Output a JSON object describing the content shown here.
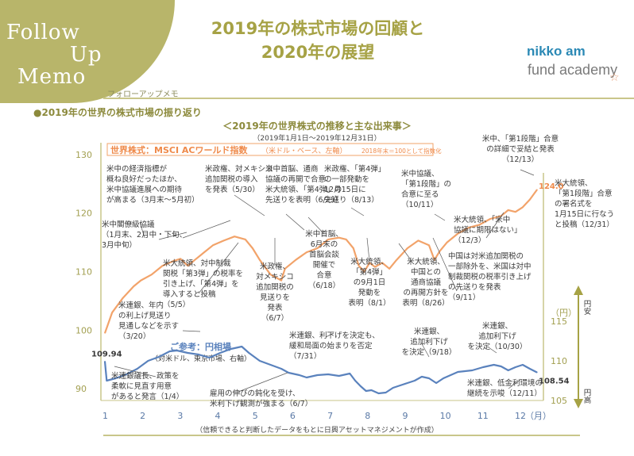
{
  "header": {
    "corner_line1": "Follow",
    "corner_line2": "Up",
    "corner_line3": "Memo",
    "corner_sub": "フォローアップメモ",
    "title_line1": "2019年の株式市場の回顧と",
    "title_line2": "2020年の展望",
    "logo_line1": "nikko am",
    "logo_line2": "fund academy",
    "logo_star": "☆"
  },
  "section_title": "●2019年の世界の株式市場の振り返り",
  "chart_title": "＜2019年の世界株式の推移と主な出来事＞",
  "period": "（2019年1月1日～2019年12月31日）",
  "footer": "（信頼できると判断したデータをもとに日興アセットマネジメントが作成）",
  "colors": {
    "olive": "#a6a245",
    "equity": "#f2a36a",
    "yen": "#5a82bd",
    "annotation": "#3a3a3a"
  },
  "chart_data": {
    "type": "line",
    "x": [
      "1",
      "2",
      "3",
      "4",
      "5",
      "6",
      "7",
      "8",
      "9",
      "10",
      "11",
      "12"
    ],
    "x_unit": "（月）",
    "left_axis": {
      "ticks": [
        "90",
        "100",
        "110",
        "120",
        "130"
      ],
      "range": [
        88,
        132
      ]
    },
    "right_axis": {
      "ticks": [
        "105",
        "110",
        "115"
      ],
      "unit": "（円）",
      "label_top": "円安",
      "label_bottom": "円高",
      "range": [
        104.5,
        118.5
      ]
    },
    "series": [
      {
        "name": "世界株式：MSCI ACワールド指数",
        "name_suffix": "（米ドル・ベース、左軸）",
        "note": "2018年末＝100として指数化",
        "axis": "left",
        "start_label": "",
        "end_label": "124.0",
        "points": [
          [
            0,
            99.5
          ],
          [
            0.2,
            103.0
          ],
          [
            0.5,
            105.5
          ],
          [
            0.8,
            107.5
          ],
          [
            1.0,
            108.5
          ],
          [
            1.3,
            109.5
          ],
          [
            1.6,
            111.0
          ],
          [
            1.9,
            111.8
          ],
          [
            2.1,
            112.2
          ],
          [
            2.3,
            111.0
          ],
          [
            2.5,
            112.0
          ],
          [
            2.8,
            113.5
          ],
          [
            3.0,
            114.5
          ],
          [
            3.3,
            115.3
          ],
          [
            3.6,
            116.0
          ],
          [
            3.9,
            115.5
          ],
          [
            4.1,
            114.0
          ],
          [
            4.3,
            112.0
          ],
          [
            4.6,
            109.5
          ],
          [
            4.9,
            108.5
          ],
          [
            5.0,
            110.5
          ],
          [
            5.3,
            112.0
          ],
          [
            5.6,
            113.3
          ],
          [
            5.9,
            114.0
          ],
          [
            6.2,
            115.5
          ],
          [
            6.5,
            115.8
          ],
          [
            6.7,
            115.5
          ],
          [
            6.9,
            114.0
          ],
          [
            7.05,
            111.0
          ],
          [
            7.2,
            110.0
          ],
          [
            7.35,
            111.5
          ],
          [
            7.5,
            110.8
          ],
          [
            7.7,
            111.5
          ],
          [
            7.9,
            110.5
          ],
          [
            8.1,
            112.0
          ],
          [
            8.4,
            114.0
          ],
          [
            8.7,
            115.3
          ],
          [
            9.0,
            114.5
          ],
          [
            9.15,
            112.0
          ],
          [
            9.3,
            113.5
          ],
          [
            9.5,
            115.0
          ],
          [
            9.8,
            116.5
          ],
          [
            10.1,
            117.5
          ],
          [
            10.4,
            118.0
          ],
          [
            10.7,
            119.0
          ],
          [
            11.0,
            119.5
          ],
          [
            11.2,
            120.5
          ],
          [
            11.4,
            120.2
          ],
          [
            11.6,
            121.0
          ],
          [
            11.8,
            122.3
          ],
          [
            12.0,
            124.0
          ]
        ]
      },
      {
        "name": "ご参考：円相場",
        "name_suffix": "（対米ドル、東京市場、右軸）",
        "axis": "right",
        "start_label": "109.94",
        "end_label": "108.54",
        "points": [
          [
            0,
            109.94
          ],
          [
            0.05,
            107.5
          ],
          [
            0.3,
            107.8
          ],
          [
            0.6,
            108.3
          ],
          [
            0.9,
            109.0
          ],
          [
            1.2,
            110.0
          ],
          [
            1.5,
            110.5
          ],
          [
            1.8,
            111.2
          ],
          [
            2.0,
            111.3
          ],
          [
            2.3,
            111.0
          ],
          [
            2.6,
            110.8
          ],
          [
            2.9,
            110.4
          ],
          [
            3.2,
            111.0
          ],
          [
            3.5,
            111.5
          ],
          [
            3.8,
            111.8
          ],
          [
            4.0,
            111.0
          ],
          [
            4.3,
            110.0
          ],
          [
            4.6,
            109.5
          ],
          [
            4.9,
            109.0
          ],
          [
            5.1,
            108.5
          ],
          [
            5.4,
            108.2
          ],
          [
            5.6,
            107.9
          ],
          [
            5.9,
            108.2
          ],
          [
            6.2,
            108.3
          ],
          [
            6.5,
            108.1
          ],
          [
            6.8,
            108.4
          ],
          [
            6.95,
            107.5
          ],
          [
            7.1,
            106.8
          ],
          [
            7.25,
            106.2
          ],
          [
            7.4,
            106.3
          ],
          [
            7.6,
            105.9
          ],
          [
            7.8,
            106.0
          ],
          [
            8.0,
            106.6
          ],
          [
            8.2,
            106.9
          ],
          [
            8.4,
            107.2
          ],
          [
            8.6,
            107.5
          ],
          [
            8.8,
            108.0
          ],
          [
            9.0,
            107.8
          ],
          [
            9.2,
            107.2
          ],
          [
            9.4,
            107.8
          ],
          [
            9.6,
            108.2
          ],
          [
            9.8,
            108.6
          ],
          [
            10.0,
            108.7
          ],
          [
            10.2,
            108.8
          ],
          [
            10.5,
            109.2
          ],
          [
            10.8,
            109.5
          ],
          [
            11.0,
            109.3
          ],
          [
            11.2,
            108.8
          ],
          [
            11.4,
            109.2
          ],
          [
            11.6,
            109.5
          ],
          [
            11.8,
            109.0
          ],
          [
            12.0,
            108.54
          ]
        ]
      }
    ]
  },
  "annotations": [
    {
      "lines": [
        "米中の経済指標が",
        "概ね良好だったほか、",
        "米中協議進展への期待",
        "が高まる（3月末～5月初）"
      ]
    },
    {
      "lines": [
        "米中閣僚級協議",
        "（1月末、2月中・下旬、",
        "3月中旬）"
      ]
    },
    {
      "lines": [
        "米政権、対メキシコ",
        "追加関税の導入",
        "を発表（5/30）"
      ]
    },
    {
      "lines": [
        "米中首脳、通商",
        "協議の再開で合意、",
        "米大統領、「第4弾」の",
        "先送りを表明（6/29）"
      ]
    },
    {
      "lines": [
        "米政権、「第4弾」",
        "の一部発動を",
        "12月15日に",
        "先送り（8/13）"
      ]
    },
    {
      "lines": [
        "米中協議、",
        "「第1段階」の",
        "合意に至る",
        "（10/11）"
      ]
    },
    {
      "lines": [
        "米中、「第1段階」合意",
        "の詳細で妥結と発表",
        "（12/13）"
      ]
    },
    {
      "lines": [
        "米大統領、",
        "「第1段階」合意",
        "の署名式を",
        "1月15日に行なう",
        "と投稿（12/31）"
      ]
    },
    {
      "lines": [
        "米大統領、「米中",
        "協議に期限はない」",
        "（12/3）"
      ]
    },
    {
      "lines": [
        "中国は対米追加関税の",
        "一部除外を、米国は対中",
        "制裁関税の税率引き上げ",
        "の先送りを発表",
        "（9/11）"
      ]
    },
    {
      "lines": [
        "米大統領、対中制裁",
        "関税「第3弾」の税率を",
        "引き上げ、「第4弾」を",
        "導入すると投稿",
        "（5/5）"
      ]
    },
    {
      "lines": [
        "米政権、",
        "対メキシコ",
        "追加関税の",
        "見送りを",
        "発表",
        "（6/7）"
      ]
    },
    {
      "lines": [
        "米中首脳、",
        "6月末の",
        "首脳会談",
        "開催で",
        "合意",
        "（6/18）"
      ]
    },
    {
      "lines": [
        "米大統領、",
        "「第4弾」",
        "の9月1日",
        "発動を",
        "表明（8/1）"
      ]
    },
    {
      "lines": [
        "米大統領、",
        "中国との",
        "通商協議",
        "の再開方針を",
        "表明（8/26）"
      ]
    },
    {
      "lines": [
        "米連銀、年内",
        "の利上げ見送り",
        "見通しなどを示す",
        "（3/20）"
      ]
    },
    {
      "lines": [
        "米連銀、利下げを決定も、",
        "緩和局面の始まりを否定",
        "（7/31）"
      ]
    },
    {
      "lines": [
        "米連銀、",
        "追加利下げ",
        "を決定（9/18）"
      ]
    },
    {
      "lines": [
        "米連銀、",
        "追加利下げ",
        "を決定（10/30）"
      ]
    },
    {
      "lines": [
        "米連銀、低金利環境の",
        "継続を示唆（12/11）"
      ]
    },
    {
      "lines": [
        "米連銀議長、政策を",
        "柔軟に見直す用意",
        "があると発言（1/4）"
      ]
    },
    {
      "lines": [
        "雇用の伸びの鈍化を受け、",
        "米利下げ観測が強まる（6/7）"
      ]
    }
  ]
}
